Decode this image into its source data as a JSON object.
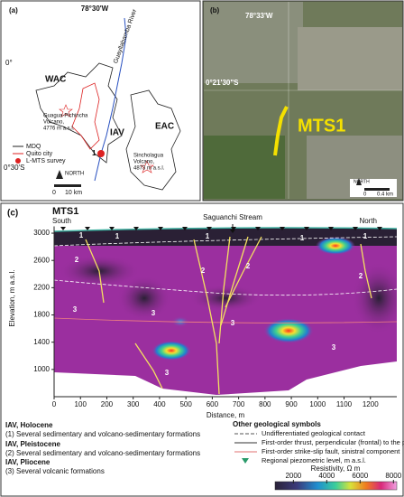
{
  "panel_a": {
    "label": "(a)",
    "longitude": "78°30'W",
    "lat_top": "0°",
    "lat_bottom": "0°30'S",
    "regions": [
      "WAC",
      "EAC",
      "IAV"
    ],
    "river": "Guayllabamba River",
    "volcano_1": [
      "Guagua-Pichincha",
      "Volcano,",
      "4776 m a.s.l."
    ],
    "volcano_2": [
      "Sincholagua",
      "Volcano,",
      "4873 m a.s.l."
    ],
    "survey_marker": "1",
    "legend": [
      "MDQ",
      "Quito city",
      "L-MTS survey"
    ],
    "north": "NORTH",
    "scale": [
      "0",
      "10 km"
    ]
  },
  "panel_b": {
    "label": "(b)",
    "longitude": "78°33'W",
    "latitude": "0°21'30\"S",
    "profile": "MTS1",
    "north": "NORTH",
    "scale": [
      "0",
      "0.4 km"
    ]
  },
  "panel_c": {
    "label": "(c)",
    "title": "MTS1",
    "left": "South",
    "right": "North",
    "stream": "Saguanchi Stream",
    "x_label": "Distance, m",
    "y_label": "Elevation, m a.s.l.",
    "xlim": [
      0,
      1300
    ],
    "xticks": [
      0,
      100,
      200,
      300,
      400,
      500,
      600,
      700,
      800,
      900,
      1000,
      1100,
      1200
    ],
    "ylim": [
      600,
      3100
    ],
    "yticks": [
      1000,
      1400,
      1800,
      2200,
      2600,
      3000
    ],
    "unit_labels": [
      "1",
      "1",
      "1",
      "1",
      "1",
      "2",
      "2",
      "2",
      "2",
      "3",
      "3",
      "3",
      "3",
      "3"
    ],
    "colorbar": {
      "title": "Resistivity, Ω m",
      "lim": [
        900,
        8200
      ],
      "ticks": [
        2000,
        4000,
        6000,
        8000
      ]
    }
  },
  "legend": {
    "units": [
      "IAV, Holocene",
      "(1) Several sedimentary and volcano-sedimentary formations",
      "IAV, Pleistocene",
      "(2) Several sedimentary and volcano-sedimentary formations",
      "IAV, Pliocene",
      "(3) Several volcanic formations"
    ],
    "symbols_title": "Other geological symbols",
    "symbols": [
      "Undifferentiated geological contact",
      "First-order thrust, perpendicular (frontal) to the profile",
      "First-order strike-slip fault, sinistral component",
      "Regional piezometric level, m a.s.l."
    ]
  }
}
